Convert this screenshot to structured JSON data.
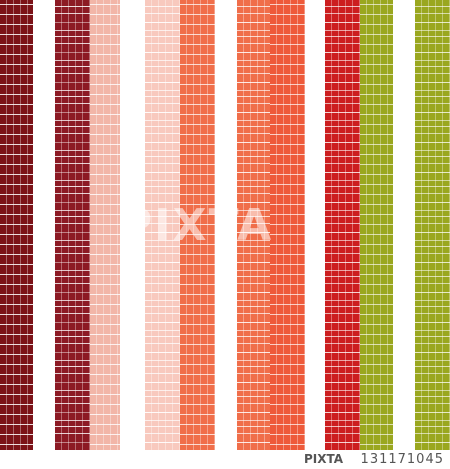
{
  "image": {
    "subject": "vertical-stripes-pattern",
    "palette": {
      "maroon": "#7b1217",
      "dark-red": "#8c1a24",
      "pink": "#f2b6a8",
      "light-pink": "#f8c9be",
      "salmon": "#f06e4a",
      "orange-red": "#ee5a3a",
      "red": "#cc1e1f",
      "olive": "#9aa71f",
      "white": "#ffffff",
      "line": "#ffffff"
    }
  },
  "watermark": {
    "text": "PIXTA"
  },
  "footer": {
    "logo_text": "PIXTA",
    "image_id": "131171045"
  }
}
